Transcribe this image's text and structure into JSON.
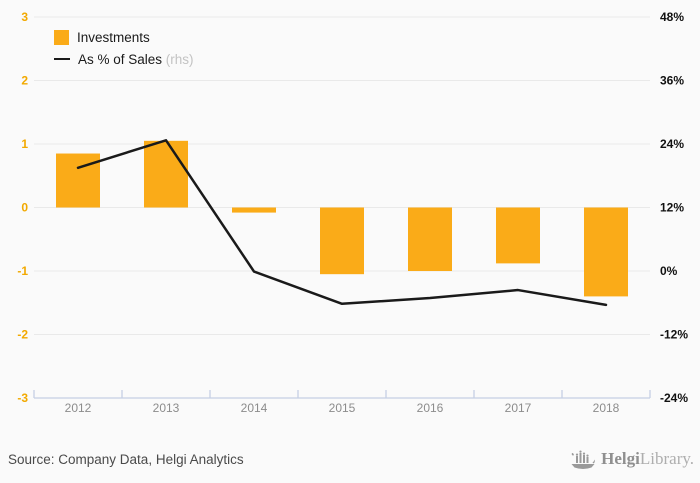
{
  "legend": {
    "investments_label": "Investments",
    "sales_label": "As % of Sales",
    "sales_suffix": " (rhs)"
  },
  "footer": {
    "source": "Source: Company Data, Helgi Analytics",
    "logo_helgi": "Helgi",
    "logo_library": "Library."
  },
  "colors": {
    "bar": "#FAAB18",
    "line": "#1A1A1A",
    "left_axis_label": "#F2A900",
    "right_axis_label": "#111111",
    "grid": "#E9E9E9",
    "x_axis": "#C5CFE4",
    "x_tick_label": "#8C8C8C",
    "background": "#FAFAFA"
  },
  "chart_data": {
    "type": "bar",
    "categories": [
      "2012",
      "2013",
      "2014",
      "2015",
      "2016",
      "2017",
      "2018"
    ],
    "series": [
      {
        "name": "Investments",
        "type": "bar",
        "axis": "left",
        "values": [
          0.85,
          1.05,
          -0.08,
          -1.05,
          -1.0,
          -0.88,
          -1.4
        ]
      },
      {
        "name": "As % of Sales (rhs)",
        "type": "line",
        "axis": "right",
        "values": [
          19.5,
          24.7,
          -0.1,
          -6.2,
          -5.1,
          -3.6,
          -6.4
        ]
      }
    ],
    "left_axis": {
      "min": -3,
      "max": 3,
      "ticks": [
        "3",
        "2",
        "1",
        "0",
        "-1",
        "-2",
        "-3"
      ]
    },
    "right_axis": {
      "min": -24,
      "max": 48,
      "ticks": [
        "48%",
        "36%",
        "24%",
        "12%",
        "0%",
        "-12%",
        "-24%"
      ]
    },
    "grid": true,
    "legend_position": "top-left",
    "title": ""
  }
}
